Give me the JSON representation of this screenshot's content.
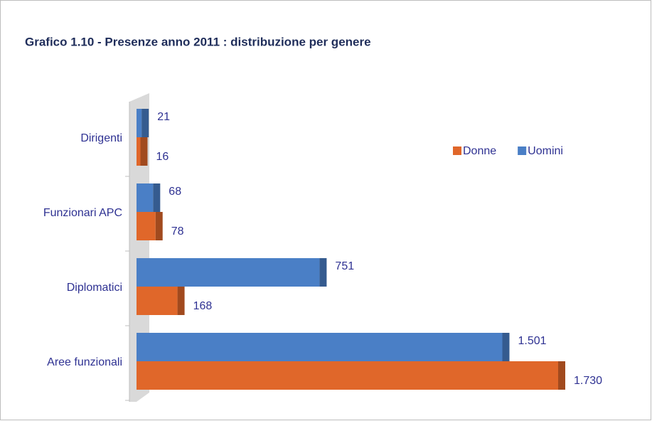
{
  "chart_data": {
    "type": "bar",
    "orientation": "horizontal",
    "title": "Grafico 1.10 - Presenze anno 2011 : distribuzione per genere",
    "categories": [
      "Dirigenti",
      "Funzionari APC",
      "Diplomatici",
      "Aree funzionali"
    ],
    "series": [
      {
        "name": "Donne",
        "color": "#e0672a",
        "values": [
          16,
          78,
          168,
          1730
        ],
        "value_labels": [
          "16",
          "78",
          "168",
          "1.730"
        ]
      },
      {
        "name": "Uomini",
        "color": "#4a7fc6",
        "values": [
          21,
          68,
          751,
          1501
        ],
        "value_labels": [
          "21",
          "68",
          "751",
          "1.501"
        ]
      }
    ],
    "legend": "upper right"
  }
}
